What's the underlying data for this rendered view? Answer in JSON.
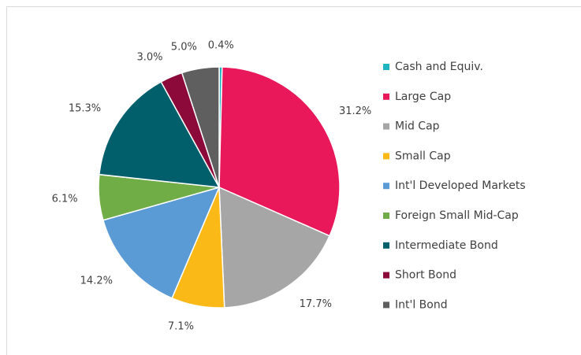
{
  "chart_data": {
    "type": "pie",
    "categories": [
      "Cash and Equiv.",
      "Large Cap",
      "Mid Cap",
      "Small Cap",
      "Int'l Developed Markets",
      "Foreign Small Mid-Cap",
      "Intermediate Bond",
      "Short Bond",
      "Int'l Bond"
    ],
    "values": [
      0.4,
      31.2,
      17.7,
      7.1,
      14.2,
      6.1,
      15.3,
      3.0,
      5.0
    ],
    "value_labels": [
      "0.4%",
      "31.2%",
      "17.7%",
      "7.1%",
      "14.2%",
      "6.1%",
      "15.3%",
      "3.0%",
      "5.0%"
    ],
    "colors": [
      "#1fb5c0",
      "#e8185a",
      "#a6a6a6",
      "#fbb917",
      "#5b9bd5",
      "#70ad47",
      "#005f6b",
      "#8b0a3a",
      "#5f5f5f"
    ],
    "legend": "right"
  }
}
